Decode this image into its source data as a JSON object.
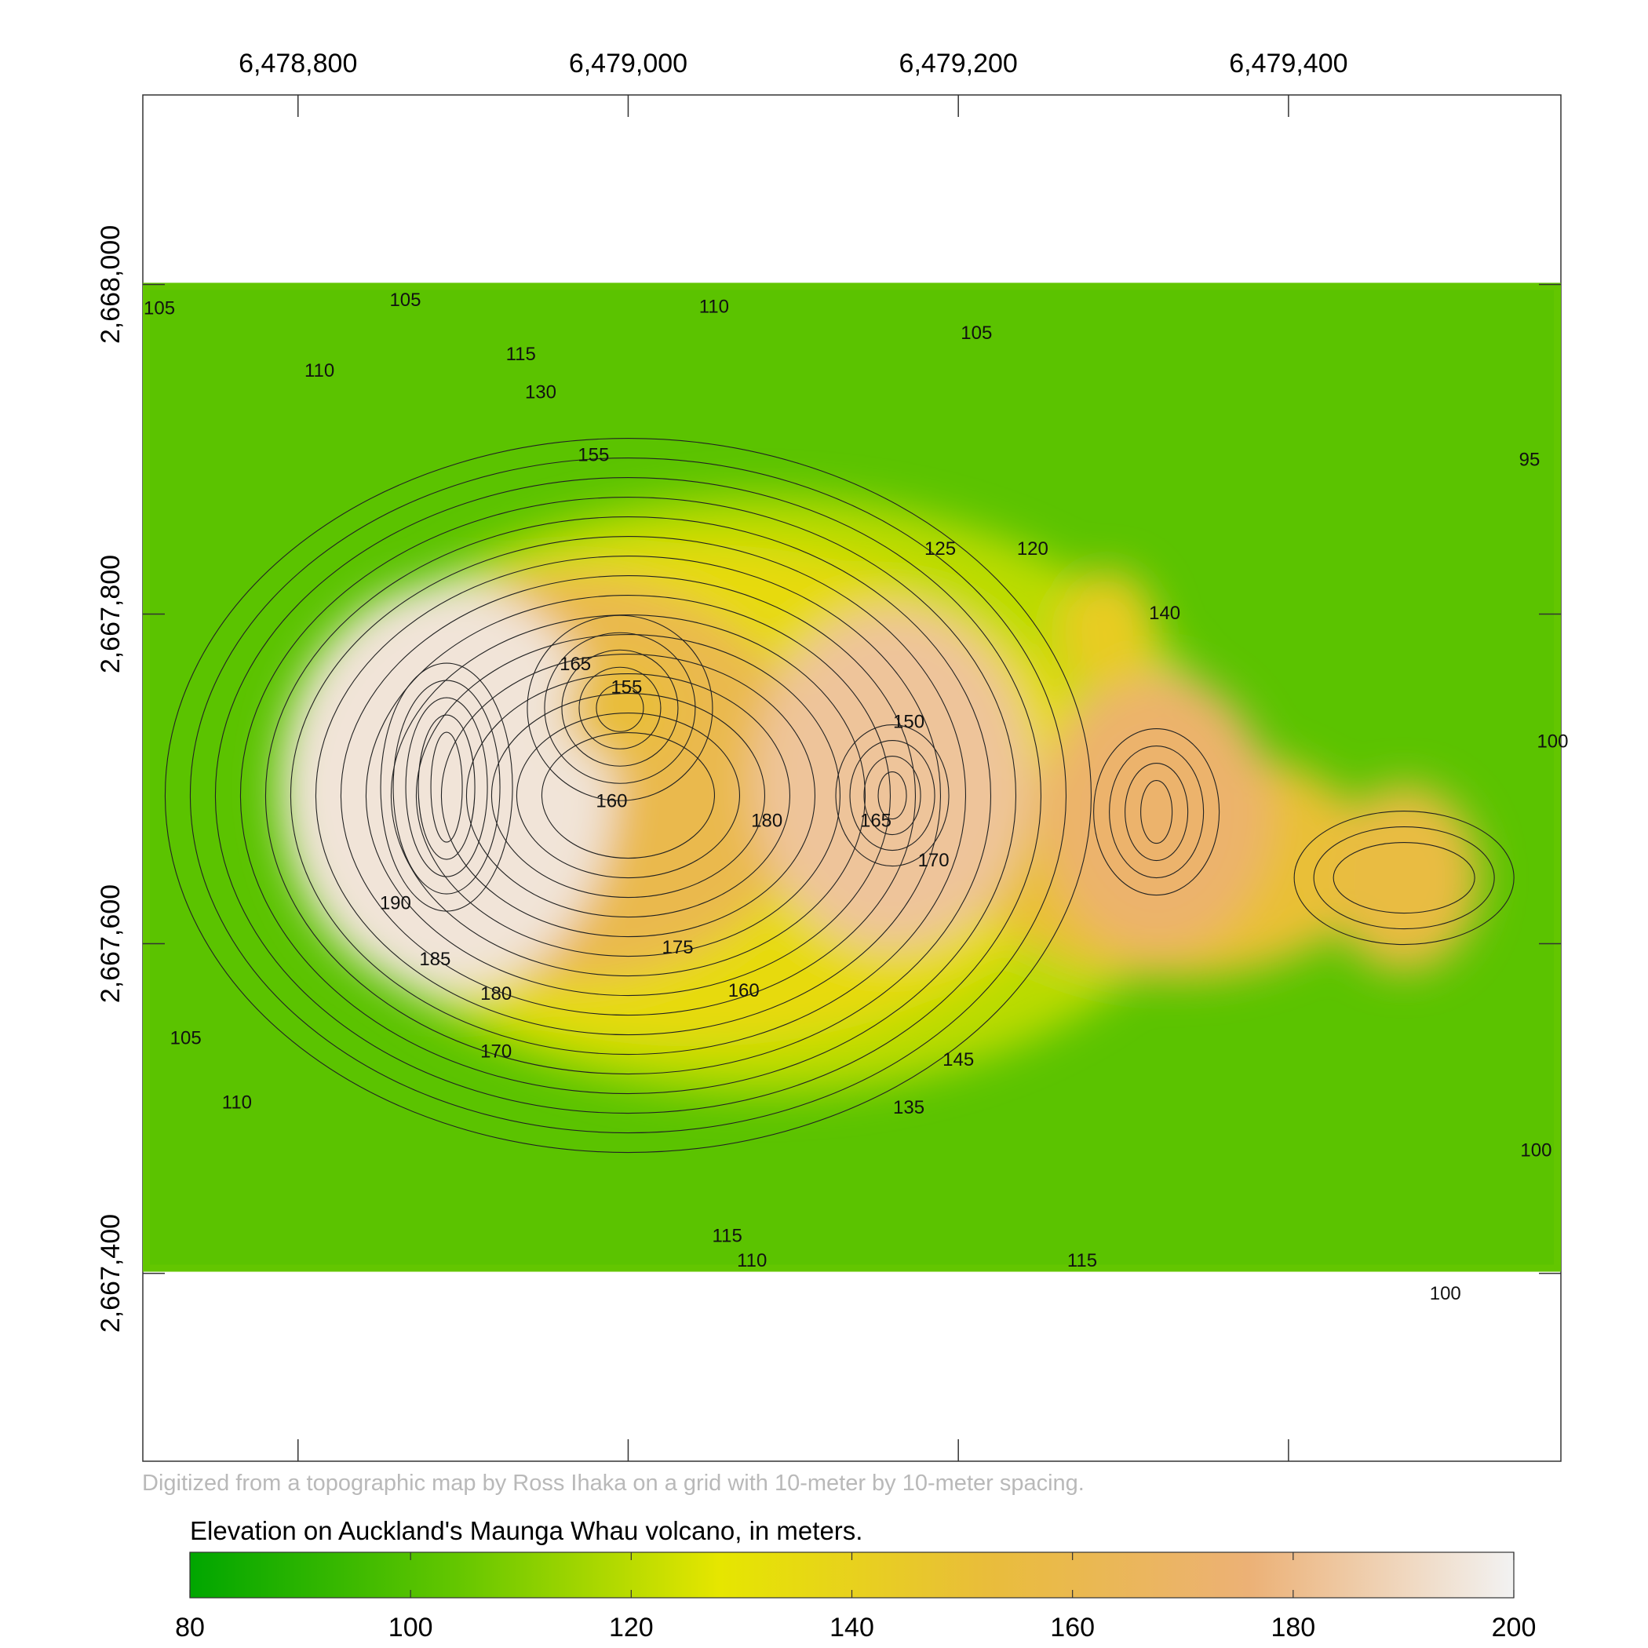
{
  "chart_data": {
    "type": "heatmap",
    "title": "Elevation on Auckland's Maunga Whau volcano, in meters.",
    "caption": "Digitized from a topographic map by Ross Ihaka on a grid with 10-meter by 10-meter spacing.",
    "x_ticks": [
      "6,478,800",
      "6,479,000",
      "6,479,200",
      "6,479,400"
    ],
    "x_tick_values": [
      6478800,
      6479000,
      6479200,
      6479400
    ],
    "y_ticks": [
      "2,668,000",
      "2,667,800",
      "2,667,600",
      "2,667,400"
    ],
    "y_tick_values": [
      2668000,
      2667800,
      2667600,
      2667400
    ],
    "xlim": [
      6478706,
      6479565
    ],
    "ylim": [
      2667286,
      2668115
    ],
    "data_extent": {
      "x": [
        6478706,
        6479565
      ],
      "y": [
        2667401,
        2668001
      ]
    },
    "grid": false,
    "legend": {
      "placement": "bottom",
      "min": 80,
      "max": 200,
      "ticks": [
        "80",
        "100",
        "120",
        "140",
        "160",
        "180",
        "200"
      ],
      "colors": [
        "#00a600",
        "#63c600",
        "#e6e600",
        "#e9bd3a",
        "#ecb176",
        "#f2f2f2"
      ]
    },
    "peaks": [
      {
        "x": 6478890,
        "y": 2667695,
        "value": 195
      },
      {
        "x": 6479160,
        "y": 2667700,
        "value": 183
      },
      {
        "x": 6479320,
        "y": 2667680,
        "value": 172
      },
      {
        "x": 6479470,
        "y": 2667640,
        "value": 155
      },
      {
        "x": 6479290,
        "y": 2667790,
        "value": 143
      }
    ],
    "crater": {
      "x": 6478995,
      "y": 2667743,
      "value": 152
    },
    "contour_labels": [
      {
        "text": "105",
        "x": 6478716,
        "y": 2667985
      },
      {
        "text": "105",
        "x": 6478865,
        "y": 2667990
      },
      {
        "text": "110",
        "x": 6478813,
        "y": 2667947
      },
      {
        "text": "115",
        "x": 6478935,
        "y": 2667957
      },
      {
        "text": "130",
        "x": 6478947,
        "y": 2667934
      },
      {
        "text": "110",
        "x": 6479052,
        "y": 2667986
      },
      {
        "text": "105",
        "x": 6479211,
        "y": 2667970
      },
      {
        "text": "155",
        "x": 6478979,
        "y": 2667896
      },
      {
        "text": "95",
        "x": 6479546,
        "y": 2667893
      },
      {
        "text": "125",
        "x": 6479189,
        "y": 2667839
      },
      {
        "text": "120",
        "x": 6479245,
        "y": 2667839
      },
      {
        "text": "140",
        "x": 6479325,
        "y": 2667800
      },
      {
        "text": "165",
        "x": 6478968,
        "y": 2667769
      },
      {
        "text": "155",
        "x": 6478999,
        "y": 2667755
      },
      {
        "text": "150",
        "x": 6479170,
        "y": 2667734
      },
      {
        "text": "100",
        "x": 6479560,
        "y": 2667722
      },
      {
        "text": "160",
        "x": 6478990,
        "y": 2667686
      },
      {
        "text": "180",
        "x": 6479084,
        "y": 2667674
      },
      {
        "text": "165",
        "x": 6479150,
        "y": 2667674
      },
      {
        "text": "170",
        "x": 6479185,
        "y": 2667650
      },
      {
        "text": "190",
        "x": 6478859,
        "y": 2667624
      },
      {
        "text": "185",
        "x": 6478883,
        "y": 2667590
      },
      {
        "text": "175",
        "x": 6479030,
        "y": 2667597
      },
      {
        "text": "180",
        "x": 6478920,
        "y": 2667569
      },
      {
        "text": "160",
        "x": 6479070,
        "y": 2667571
      },
      {
        "text": "170",
        "x": 6478920,
        "y": 2667534
      },
      {
        "text": "105",
        "x": 6478732,
        "y": 2667542
      },
      {
        "text": "145",
        "x": 6479200,
        "y": 2667529
      },
      {
        "text": "110",
        "x": 6478763,
        "y": 2667503
      },
      {
        "text": "135",
        "x": 6479170,
        "y": 2667500
      },
      {
        "text": "100",
        "x": 6479550,
        "y": 2667474
      },
      {
        "text": "115",
        "x": 6479060,
        "y": 2667422
      },
      {
        "text": "115",
        "x": 6479275,
        "y": 2667407
      },
      {
        "text": "110",
        "x": 6479075,
        "y": 2667407
      },
      {
        "text": "100",
        "x": 6479495,
        "y": 2667387
      }
    ]
  }
}
